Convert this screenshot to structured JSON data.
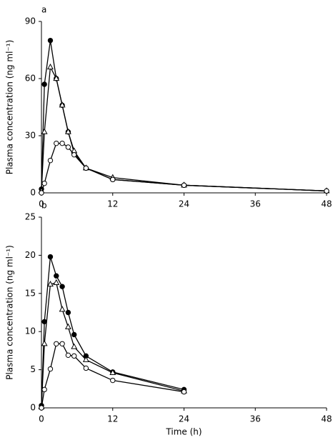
{
  "chart_data": [
    {
      "type": "line",
      "panel": "a",
      "ylabel": "Plasma concentration (ng ml⁻¹)",
      "x": [
        0,
        0.5,
        1.5,
        2.5,
        3.5,
        4.5,
        5.5,
        7.5,
        12,
        24,
        48
      ],
      "xlim": [
        0,
        48
      ],
      "xticks": [
        0,
        12,
        24,
        36,
        48
      ],
      "ylim": [
        0,
        90
      ],
      "yticks": [
        0,
        30,
        60,
        90
      ],
      "series": [
        {
          "marker": "filled-circle",
          "color": "#000000",
          "values": [
            2,
            57,
            80,
            60,
            46,
            32,
            21,
            13,
            7,
            4,
            1
          ]
        },
        {
          "marker": "open-triangle",
          "color": "#000000",
          "values": [
            1,
            32,
            66,
            60,
            46,
            32,
            22,
            13,
            8,
            4,
            1
          ]
        },
        {
          "marker": "open-circle",
          "color": "#000000",
          "values": [
            0,
            5,
            17,
            26,
            26,
            24,
            20,
            13,
            7,
            4,
            1
          ]
        }
      ]
    },
    {
      "type": "line",
      "panel": "b",
      "ylabel": "Plasma concentration (ng ml⁻¹)",
      "xlabel": "Time (h)",
      "x": [
        0,
        0.5,
        1.5,
        2.5,
        3.5,
        4.5,
        5.5,
        7.5,
        12,
        24
      ],
      "xlim": [
        0,
        48
      ],
      "xticks": [
        0,
        12,
        24,
        36,
        48
      ],
      "ylim": [
        0,
        25
      ],
      "yticks": [
        0,
        5,
        10,
        15,
        20,
        25
      ],
      "series": [
        {
          "marker": "filled-circle",
          "color": "#000000",
          "values": [
            0.3,
            11.3,
            19.8,
            17.3,
            15.9,
            12.5,
            9.6,
            6.8,
            4.7,
            2.4
          ]
        },
        {
          "marker": "open-triangle",
          "color": "#000000",
          "values": [
            0.1,
            8.4,
            16.2,
            16.4,
            12.9,
            10.6,
            8.0,
            6.3,
            4.6,
            2.2
          ]
        },
        {
          "marker": "open-circle",
          "color": "#000000",
          "values": [
            0,
            2.4,
            5.1,
            8.4,
            8.4,
            6.9,
            6.8,
            5.2,
            3.6,
            2.1
          ]
        }
      ]
    }
  ]
}
